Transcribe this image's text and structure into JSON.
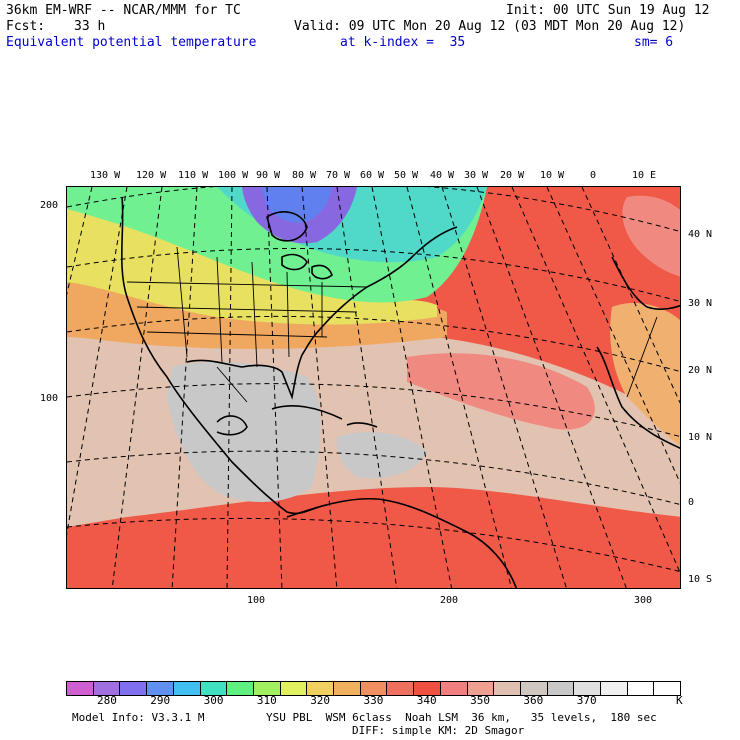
{
  "header": {
    "left_line1": "36km EM-WRF -- NCAR/MMM for TC",
    "left_line2_label": "Fcst:",
    "left_line2_value": "33 h",
    "right_line1": "Init: 00 UTC Sun 19 Aug 12",
    "right_line2": "Valid: 09 UTC Mon 20 Aug 12 (03 MDT Mon 20 Aug 12)",
    "field_name": "Equivalent potential temperature",
    "level": "at k-index =  35",
    "smoothing": "sm= 6"
  },
  "map": {
    "lon_labels": [
      "130 W",
      "120 W",
      "110 W",
      "100 W",
      "90 W",
      "80 W",
      "70 W",
      "60 W",
      "50 W",
      "40 W",
      "30 W",
      "20 W",
      "10 W",
      "0",
      "10 E"
    ],
    "lat_labels": [
      "40 N",
      "30 N",
      "20 N",
      "10 N",
      "0",
      "10 S"
    ],
    "grid_y_labels": [
      "200",
      "100"
    ],
    "grid_x_labels": [
      "100",
      "200",
      "300"
    ],
    "colors": {
      "cold": "#8060e0",
      "cool": "#40d0c0",
      "mild": "#60f0a0",
      "green_yellow": "#c0f060",
      "yellow": "#f0e060",
      "orange": "#f0b060",
      "warm": "#f08060",
      "hot": "#f05040",
      "tan": "#e0c0b0",
      "gray": "#c8c8c8",
      "pink": "#f0a0a0"
    }
  },
  "colorbar": {
    "colors": [
      "#d060d0",
      "#a070e0",
      "#8070f0",
      "#6090f0",
      "#40c0f0",
      "#40e0c0",
      "#60f080",
      "#a0f060",
      "#e0f060",
      "#f0d060",
      "#f0b060",
      "#f09060",
      "#f07060",
      "#f05040",
      "#f08080",
      "#f0a090",
      "#e0c0b0",
      "#d0c8c0",
      "#c8c8c8",
      "#e0e0e0",
      "#f0f0f0",
      "#ffffff",
      "#ffffff"
    ],
    "labels": [
      "280",
      "290",
      "300",
      "310",
      "320",
      "330",
      "340",
      "350",
      "360",
      "370"
    ],
    "unit": "K"
  },
  "footer": {
    "model_info": "Model Info: V3.3.1 M",
    "physics_line1": "YSU PBL  WSM 6class  Noah LSM  36 km,   35 levels,  180 sec",
    "physics_line2": "DIFF: simple KM: 2D Smagor"
  }
}
